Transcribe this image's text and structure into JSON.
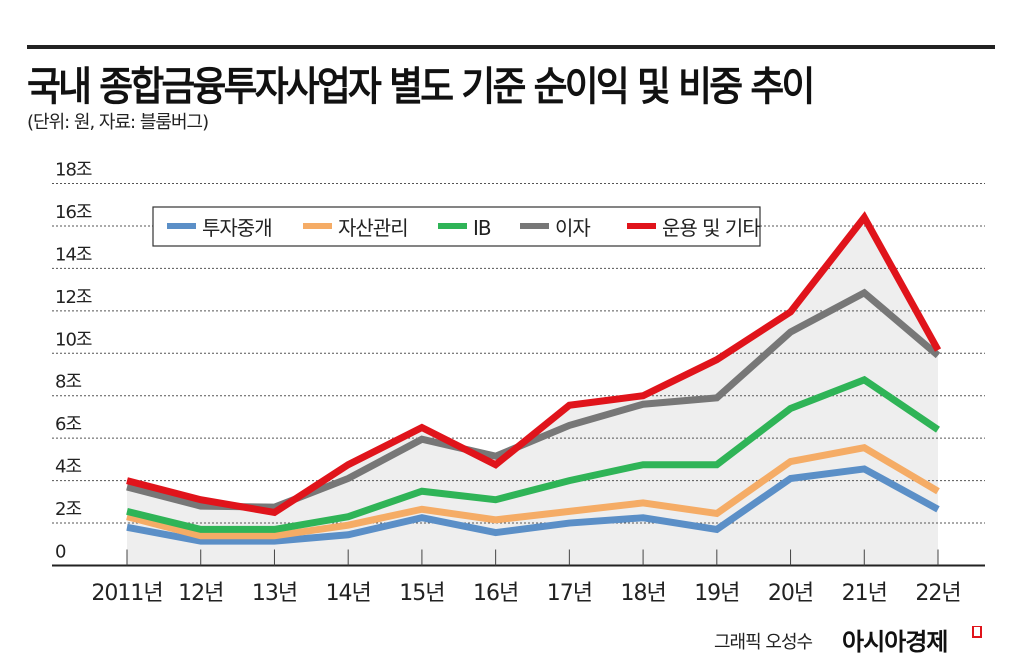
{
  "header": {
    "title": "국내 종합금융투자사업자 별도 기준 순이익 및 비중 추이",
    "subtitle": "(단위: 원, 자료: 블룸버그)"
  },
  "footer": {
    "credit": "그래픽 오성수",
    "logo": "아시아경제",
    "logo_color": "#e0141b"
  },
  "chart_data": {
    "type": "line",
    "title": "국내 종합금융투자사업자 별도 기준 순이익 및 비중 추이",
    "ylabel": "",
    "xlabel": "",
    "ylim": [
      0,
      18
    ],
    "yticks": [
      0,
      2,
      4,
      6,
      8,
      10,
      12,
      14,
      16,
      18
    ],
    "ytick_labels": [
      "0",
      "2조",
      "4조",
      "6조",
      "8조",
      "10조",
      "12조",
      "14조",
      "16조",
      "18조"
    ],
    "grid": "horizontal dotted",
    "legend": "top-left",
    "stacked_cumulative": true,
    "area_fill_color": "#eeeeee",
    "categories": [
      "2011년",
      "12년",
      "13년",
      "14년",
      "15년",
      "16년",
      "17년",
      "18년",
      "19년",
      "20년",
      "21년",
      "22년"
    ],
    "series": [
      {
        "name": "투자중개",
        "color": "#5b8fc7",
        "values": [
          1.8,
          1.15,
          1.15,
          1.45,
          2.25,
          1.55,
          2.0,
          2.25,
          1.7,
          4.1,
          4.55,
          2.65
        ]
      },
      {
        "name": "자산관리",
        "color": "#f5ac66",
        "values": [
          2.3,
          1.4,
          1.4,
          1.9,
          2.65,
          2.15,
          2.55,
          2.95,
          2.45,
          4.9,
          5.55,
          3.5
        ]
      },
      {
        "name": "IB",
        "color": "#2fb457",
        "values": [
          2.55,
          1.7,
          1.7,
          2.3,
          3.5,
          3.1,
          4.0,
          4.75,
          4.75,
          7.4,
          8.75,
          6.4
        ]
      },
      {
        "name": "이자",
        "color": "#777777",
        "values": [
          3.7,
          2.8,
          2.75,
          4.1,
          5.95,
          5.15,
          6.6,
          7.6,
          7.9,
          11.0,
          12.85,
          9.9
        ]
      },
      {
        "name": "운용 및 기타",
        "color": "#e0141b",
        "values": [
          4.0,
          3.1,
          2.5,
          4.75,
          6.5,
          4.75,
          7.55,
          8.0,
          9.7,
          11.95,
          16.4,
          10.15
        ]
      }
    ]
  }
}
